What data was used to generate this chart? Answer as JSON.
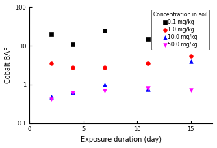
{
  "series": [
    {
      "label": "0.1 mg/kg",
      "color": "black",
      "marker": "s",
      "x": [
        2,
        4,
        7,
        11,
        15
      ],
      "y": [
        20,
        11,
        25,
        15,
        null
      ]
    },
    {
      "label": "1.0 mg/kg",
      "color": "red",
      "marker": "o",
      "x": [
        2,
        4,
        7,
        11,
        15
      ],
      "y": [
        3.5,
        2.8,
        2.7,
        3.5,
        5.5
      ]
    },
    {
      "label": "10.0 mg/kg",
      "color": "blue",
      "marker": "^",
      "x": [
        2,
        4,
        7,
        11,
        15
      ],
      "y": [
        0.48,
        0.62,
        1.0,
        0.75,
        4.0
      ]
    },
    {
      "label": "50.0 mg/kg",
      "color": "magenta",
      "marker": "v",
      "x": [
        2,
        4,
        7,
        11,
        15
      ],
      "y": [
        0.42,
        0.6,
        0.68,
        0.82,
        0.72
      ]
    }
  ],
  "xlabel": "Exposure duration (day)",
  "ylabel": "Cobalt BAF",
  "legend_title": "Concentration in soil",
  "xlim": [
    0,
    17
  ],
  "xticks": [
    0,
    5,
    10,
    15
  ],
  "ylim": [
    0.1,
    100
  ],
  "yticks": [
    0.1,
    1,
    10,
    100
  ],
  "ytick_labels": [
    "0.1",
    "1",
    "10",
    "100"
  ],
  "background_color": "white",
  "figure_color": "white",
  "marker_size": 16
}
